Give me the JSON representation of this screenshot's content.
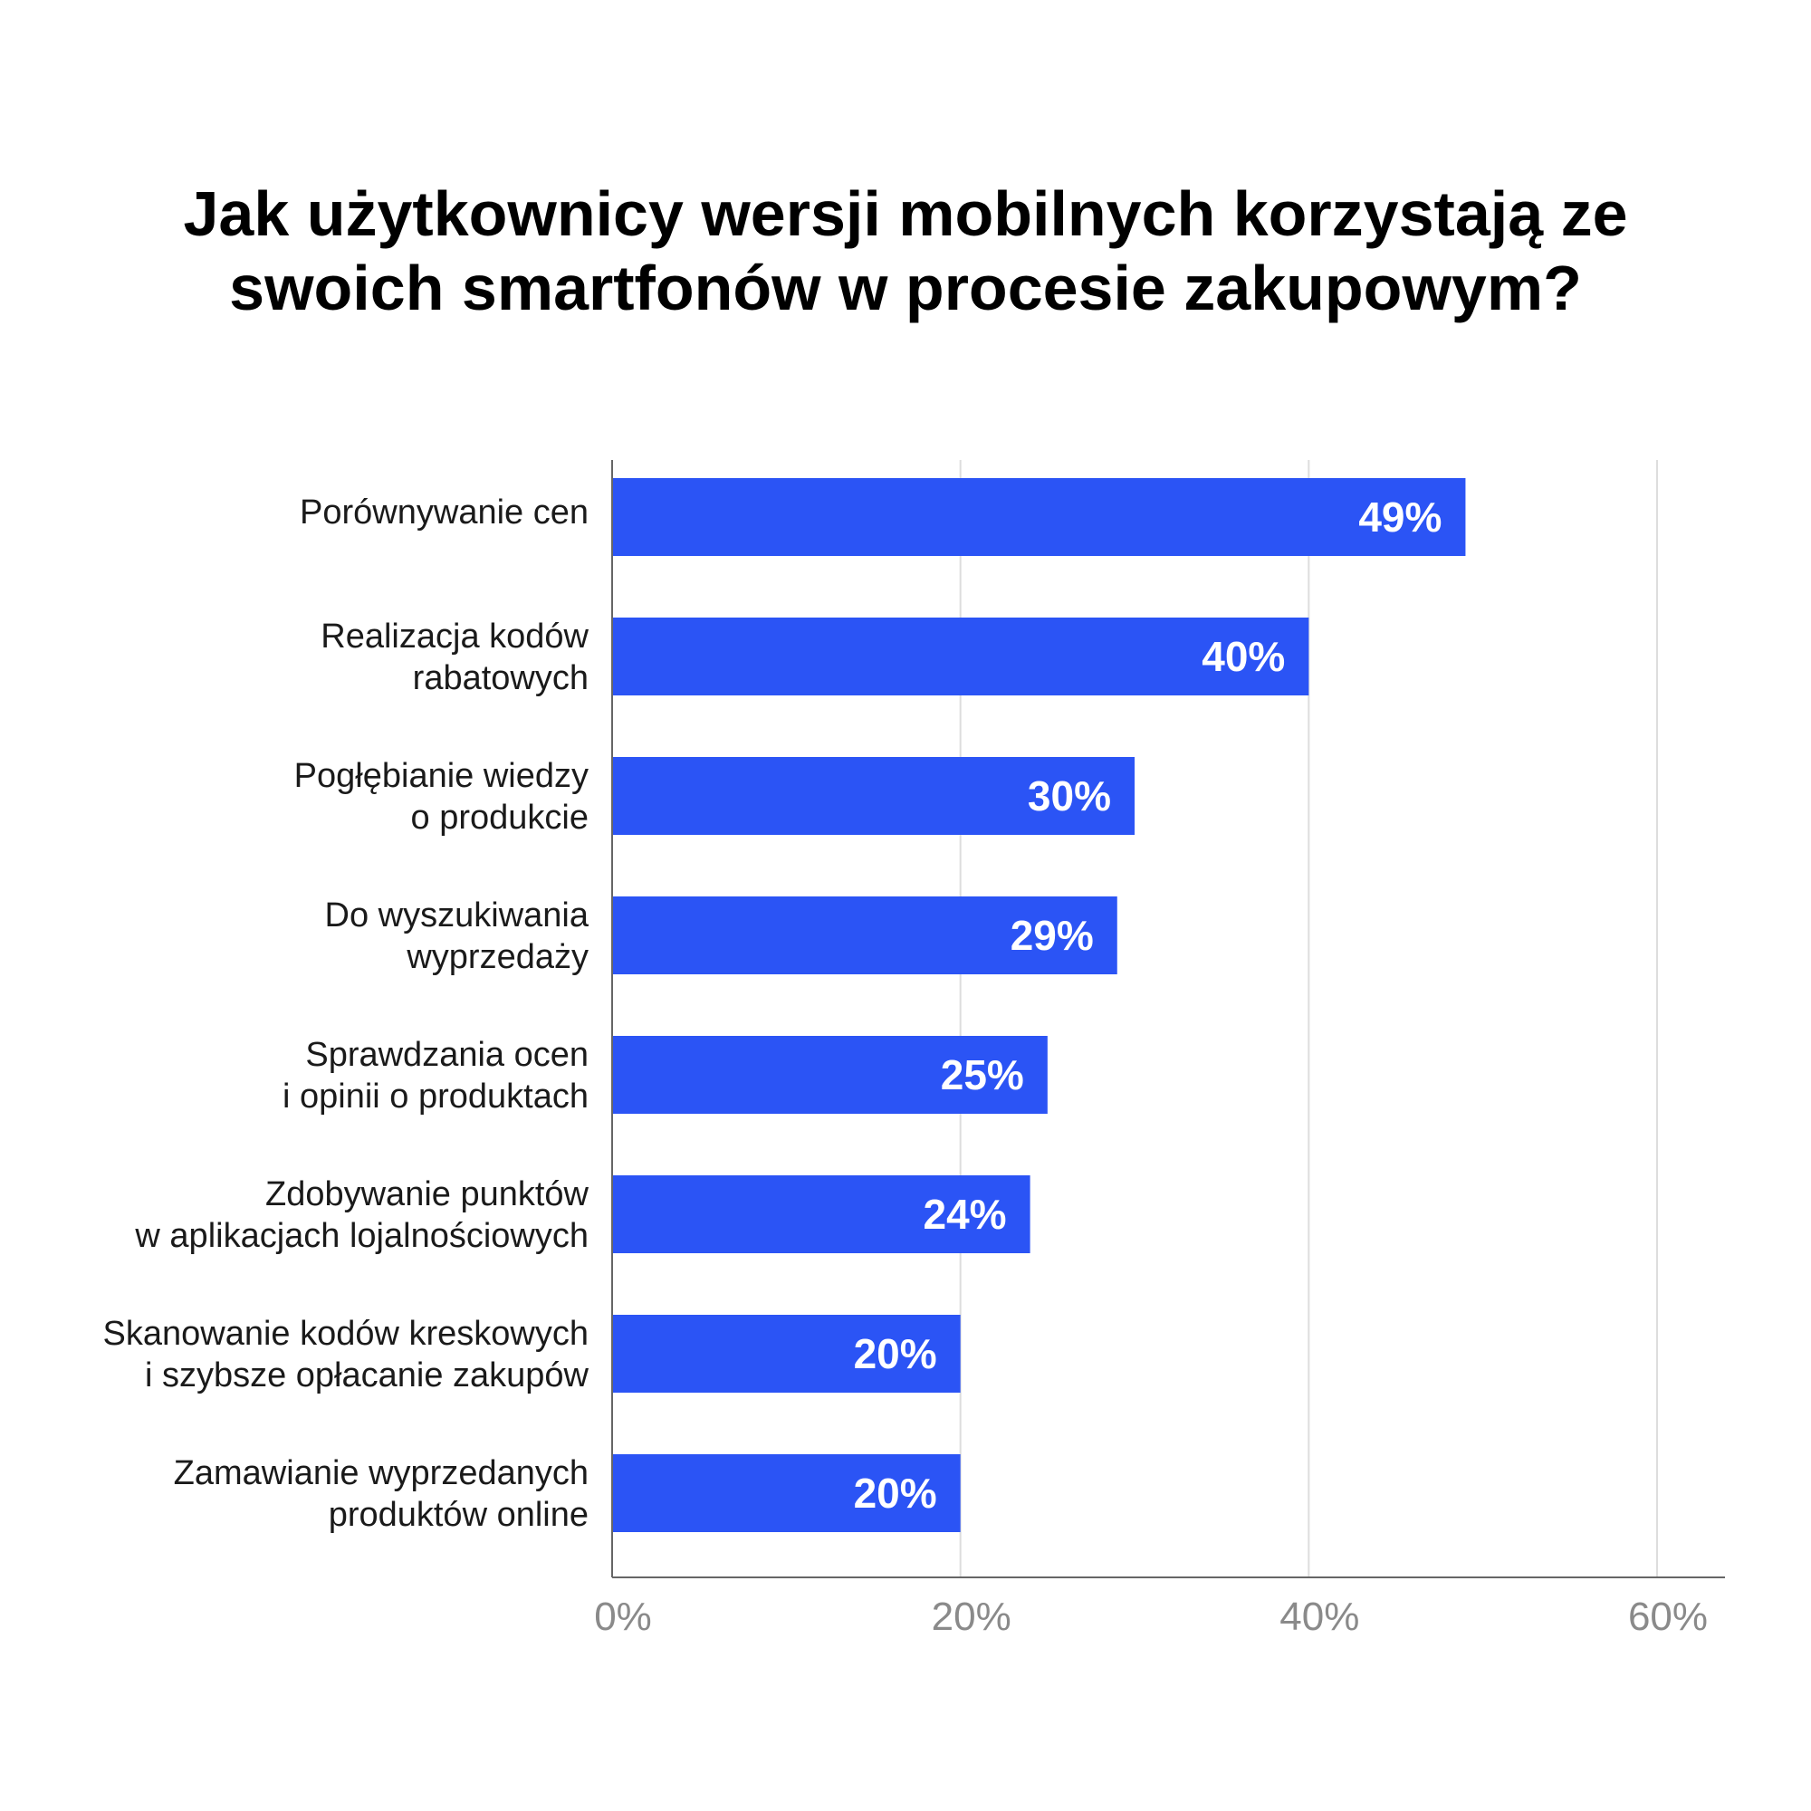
{
  "chart_data": {
    "type": "bar",
    "orientation": "horizontal",
    "title_lines": [
      "Jak użytkownicy wersji mobilnych korzystają ze",
      "swoich smartfonów w procesie zakupowym?"
    ],
    "categories": [
      [
        "Porównywanie cen"
      ],
      [
        "Realizacja kodów",
        "rabatowych"
      ],
      [
        "Pogłębianie wiedzy",
        "o produkcie"
      ],
      [
        "Do wyszukiwania",
        "wyprzedaży"
      ],
      [
        "Sprawdzania ocen",
        "i opinii o produktach"
      ],
      [
        "Zdobywanie punktów",
        "w aplikacjach lojalnościowych"
      ],
      [
        "Skanowanie kodów kreskowych",
        "i szybsze opłacanie zakupów"
      ],
      [
        "Zamawianie wyprzedanych",
        "produktów online"
      ]
    ],
    "values": [
      49,
      40,
      30,
      29,
      25,
      24,
      20,
      20
    ],
    "value_labels": [
      "49%",
      "40%",
      "30%",
      "29%",
      "25%",
      "24%",
      "20%",
      "20%"
    ],
    "x_ticks": [
      0,
      20,
      40,
      60
    ],
    "x_tick_labels": [
      "0%",
      "20%",
      "40%",
      "60%"
    ],
    "xlim": [
      0,
      60
    ],
    "grid": true,
    "legend": "none",
    "colors": {
      "bar": "#2b54f5",
      "grid": "#dddddd",
      "axis": "#666666",
      "tick_text": "#8a8a8a",
      "title_text": "#000000"
    }
  }
}
